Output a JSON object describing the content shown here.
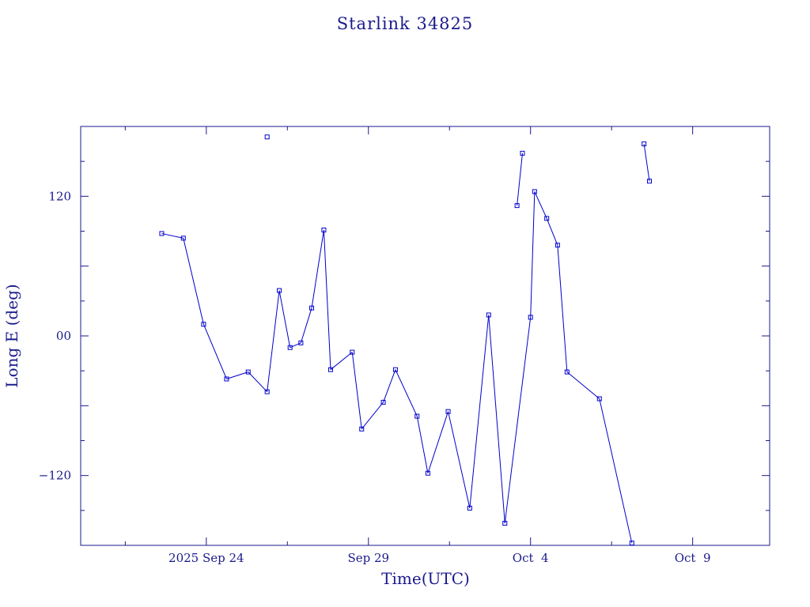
{
  "chart_data": {
    "type": "line",
    "title": "Starlink 34825",
    "xlabel": "Time(UTC)",
    "ylabel": "Long E (deg)",
    "color": "#0000cc",
    "axis_color": "#1a1a8c",
    "grid": false,
    "x_unit": "date (Sep–Oct 2025, UTC)",
    "xlim": [
      "2025-09-20T03:00",
      "2025-10-11T09:00"
    ],
    "ylim": [
      -180,
      180
    ],
    "x_major_ticks": [
      {
        "at": "2025-09-24T00:00",
        "label": "2025 Sep 24"
      },
      {
        "at": "2025-09-29T00:00",
        "label": "Sep 29"
      },
      {
        "at": "2025-10-04T00:00",
        "label": "Oct  4"
      },
      {
        "at": "2025-10-09T00:00",
        "label": "Oct  9"
      }
    ],
    "y_major_ticks": [
      {
        "at": 120,
        "label": "120"
      },
      {
        "at": 0,
        "label": "00"
      },
      {
        "at": -120,
        "label": "−120"
      }
    ],
    "series": [
      {
        "points": [
          {
            "x": "2025-09-22T15:00",
            "y": 88
          },
          {
            "x": "2025-09-23T07:00",
            "y": 84
          },
          {
            "x": "2025-09-23T22:00",
            "y": 10
          },
          {
            "x": "2025-09-24T15:00",
            "y": -37
          },
          {
            "x": "2025-09-25T07:00",
            "y": -31
          },
          {
            "x": "2025-09-25T21:00",
            "y": -48
          },
          {
            "x": "2025-09-26T06:00",
            "y": 39
          },
          {
            "x": "2025-09-26T14:00",
            "y": -10
          },
          {
            "x": "2025-09-26T22:00",
            "y": -6
          },
          {
            "x": "2025-09-27T06:00",
            "y": 24
          },
          {
            "x": "2025-09-27T15:00",
            "y": 91
          },
          {
            "x": "2025-09-27T20:00",
            "y": -29
          },
          {
            "x": "2025-09-28T12:00",
            "y": -14
          },
          {
            "x": "2025-09-28T19:00",
            "y": -80
          },
          {
            "x": "2025-09-29T11:00",
            "y": -57
          },
          {
            "x": "2025-09-29T20:00",
            "y": -29
          },
          {
            "x": "2025-09-30T12:00",
            "y": -69
          },
          {
            "x": "2025-09-30T20:00",
            "y": -118
          },
          {
            "x": "2025-10-01T11:00",
            "y": -65
          },
          {
            "x": "2025-10-02T03:00",
            "y": -148
          },
          {
            "x": "2025-10-02T17:00",
            "y": 18
          },
          {
            "x": "2025-10-03T05:00",
            "y": -161
          },
          {
            "x": "2025-10-04T00:00",
            "y": 16
          },
          {
            "x": "2025-10-04T03:00",
            "y": 124
          },
          {
            "x": "2025-10-04T12:00",
            "y": 101
          },
          {
            "x": "2025-10-04T20:00",
            "y": 78
          },
          {
            "x": "2025-10-05T03:00",
            "y": -31
          },
          {
            "x": "2025-10-06T03:00",
            "y": -54
          },
          {
            "x": "2025-10-07T03:00",
            "y": -178
          }
        ]
      }
    ],
    "wrapped_points": [
      {
        "x": "2025-09-25T21:00",
        "y": 171
      },
      {
        "x": "2025-10-03T14:00",
        "y": 112
      },
      {
        "x": "2025-10-03T18:00",
        "y": 157
      },
      {
        "x": "2025-10-07T12:00",
        "y": 165
      },
      {
        "x": "2025-10-07T16:00",
        "y": 133
      }
    ]
  }
}
